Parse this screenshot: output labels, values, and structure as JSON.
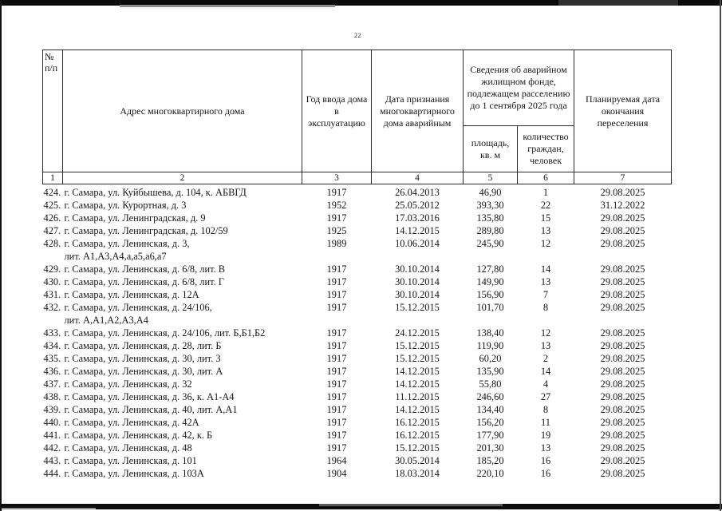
{
  "page": {
    "number": "22"
  },
  "colors": {
    "paper": "#ffffff",
    "ink": "#161616",
    "table_border": "#2b2b2b",
    "scan_bar": "#0a0a0a"
  },
  "table": {
    "headers": {
      "col1": "№ п/п",
      "col2": "Адрес многоквартирного дома",
      "col3": "Год ввода дома в эксплуатацию",
      "col4": "Дата признания многоквартирного дома аварийным",
      "col56_group": "Сведения об аварийном жилищном фонде, подлежащем расселению до 1 сентября 2025 года",
      "col5": "площадь, кв. м",
      "col6": "количество граждан, человек",
      "col7": "Планируемая дата окончания переселения"
    },
    "column_numbers": [
      "1",
      "2",
      "3",
      "4",
      "5",
      "6",
      "7"
    ],
    "rows": [
      {
        "num": "424.",
        "address": [
          "г. Самара, ул. Куйбышева, д. 104, к. АБВГД"
        ],
        "year": "1917",
        "recognized": "26.04.2013",
        "area": "46,90",
        "citizens": "1",
        "planned": "29.08.2025"
      },
      {
        "num": "425.",
        "address": [
          "г. Самара, ул. Курортная, д. 3"
        ],
        "year": "1952",
        "recognized": "25.05.2012",
        "area": "393,30",
        "citizens": "22",
        "planned": "31.12.2022"
      },
      {
        "num": "426.",
        "address": [
          "г. Самара, ул. Ленинградская, д. 9"
        ],
        "year": "1917",
        "recognized": "17.03.2016",
        "area": "135,80",
        "citizens": "15",
        "planned": "29.08.2025"
      },
      {
        "num": "427.",
        "address": [
          "г. Самара, ул. Ленинградская, д. 102/59"
        ],
        "year": "1925",
        "recognized": "14.12.2015",
        "area": "289,80",
        "citizens": "13",
        "planned": "29.08.2025"
      },
      {
        "num": "428.",
        "address": [
          "г. Самара, ул. Ленинская, д. 3,",
          "лит. А1,А3,А4,а,а5,а6,а7"
        ],
        "year": "1989",
        "recognized": "10.06.2014",
        "area": "245,90",
        "citizens": "12",
        "planned": "29.08.2025"
      },
      {
        "num": "429.",
        "address": [
          "г. Самара, ул. Ленинская, д. 6/8, лит. В"
        ],
        "year": "1917",
        "recognized": "30.10.2014",
        "area": "127,80",
        "citizens": "14",
        "planned": "29.08.2025"
      },
      {
        "num": "430.",
        "address": [
          "г. Самара, ул. Ленинская, д. 6/8, лит. Г"
        ],
        "year": "1917",
        "recognized": "30.10.2014",
        "area": "149,90",
        "citizens": "13",
        "planned": "29.08.2025"
      },
      {
        "num": "431.",
        "address": [
          "г. Самара, ул. Ленинская, д. 12А"
        ],
        "year": "1917",
        "recognized": "30.10.2014",
        "area": "156,90",
        "citizens": "7",
        "planned": "29.08.2025"
      },
      {
        "num": "432.",
        "address": [
          "г. Самара, ул. Ленинская, д. 24/106,",
          "лит. А,А1,А2,А3,А4"
        ],
        "year": "1917",
        "recognized": "15.12.2015",
        "area": "101,70",
        "citizens": "8",
        "planned": "29.08.2025"
      },
      {
        "num": "433.",
        "address": [
          "г. Самара, ул. Ленинская, д. 24/106, лит. Б,Б1,Б2"
        ],
        "year": "1917",
        "recognized": "24.12.2015",
        "area": "138,40",
        "citizens": "12",
        "planned": "29.08.2025"
      },
      {
        "num": "434.",
        "address": [
          "г. Самара, ул. Ленинская, д. 28, лит. Б"
        ],
        "year": "1917",
        "recognized": "15.12.2015",
        "area": "119,90",
        "citizens": "13",
        "planned": "29.08.2025"
      },
      {
        "num": "435.",
        "address": [
          "г. Самара, ул. Ленинская, д. 30, лит. 3"
        ],
        "year": "1917",
        "recognized": "15.12.2015",
        "area": "60,20",
        "citizens": "2",
        "planned": "29.08.2025"
      },
      {
        "num": "436.",
        "address": [
          "г. Самара, ул. Ленинская, д. 30, лит. А"
        ],
        "year": "1917",
        "recognized": "14.12.2015",
        "area": "135,90",
        "citizens": "14",
        "planned": "29.08.2025"
      },
      {
        "num": "437.",
        "address": [
          "г. Самара, ул. Ленинская, д. 32"
        ],
        "year": "1917",
        "recognized": "14.12.2015",
        "area": "55,80",
        "citizens": "4",
        "planned": "29.08.2025"
      },
      {
        "num": "438.",
        "address": [
          "г. Самара, ул. Ленинская, д. 36, к. А1-А4"
        ],
        "year": "1917",
        "recognized": "11.12.2015",
        "area": "246,60",
        "citizens": "27",
        "planned": "29.08.2025"
      },
      {
        "num": "439.",
        "address": [
          "г. Самара, ул. Ленинская, д. 40, лит. А,А1"
        ],
        "year": "1917",
        "recognized": "14.12.2015",
        "area": "134,40",
        "citizens": "8",
        "planned": "29.08.2025"
      },
      {
        "num": "440.",
        "address": [
          "г. Самара, ул. Ленинская, д. 42А"
        ],
        "year": "1917",
        "recognized": "16.12.2015",
        "area": "156,20",
        "citizens": "11",
        "planned": "29.08.2025"
      },
      {
        "num": "441.",
        "address": [
          "г. Самара, ул. Ленинская, д. 42, к. Б"
        ],
        "year": "1917",
        "recognized": "16.12.2015",
        "area": "177,90",
        "citizens": "19",
        "planned": "29.08.2025"
      },
      {
        "num": "442.",
        "address": [
          "г. Самара, ул. Ленинская, д. 48"
        ],
        "year": "1917",
        "recognized": "15.12.2015",
        "area": "201,30",
        "citizens": "13",
        "planned": "29.08.2025"
      },
      {
        "num": "443.",
        "address": [
          "г. Самара, ул. Ленинская, д. 101"
        ],
        "year": "1964",
        "recognized": "30.05.2014",
        "area": "185,20",
        "citizens": "16",
        "planned": "29.08.2025"
      },
      {
        "num": "444.",
        "address": [
          "г. Самара, ул. Ленинская, д. 103А"
        ],
        "year": "1904",
        "recognized": "18.03.2014",
        "area": "220,10",
        "citizens": "16",
        "planned": "29.08.2025"
      }
    ]
  }
}
